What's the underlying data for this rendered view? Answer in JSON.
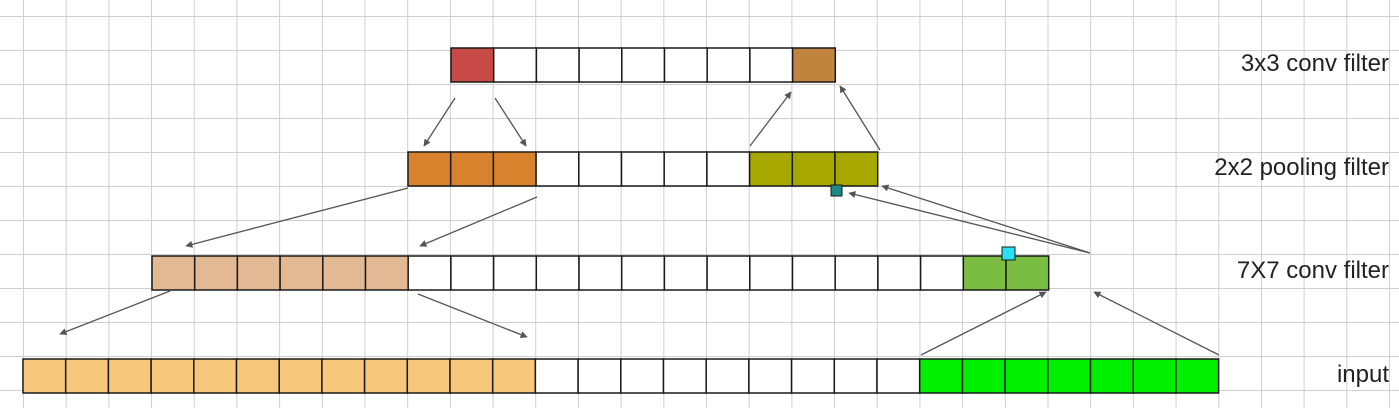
{
  "labels": {
    "conv3": "3x3 conv filter",
    "pool": "2x2 pooling filter",
    "conv7": "7X7 conv filter",
    "input": "input"
  },
  "colors": {
    "grid": "#cfcfcf",
    "cell_border": "#1a1a1a",
    "arrow": "#555555",
    "red": "#c84b47",
    "brown": "#c0843f",
    "orange": "#d8822e",
    "olive": "#a6a800",
    "tan": "#e2b993",
    "light_green": "#7bbd42",
    "peach": "#f7c77b",
    "green": "#00f000",
    "white": "#ffffff",
    "handle_cyan": "#29e3f2",
    "handle_teal": "#1e8a86"
  },
  "rows": [
    {
      "id": "conv3",
      "cells": [
        "red",
        "white",
        "white",
        "white",
        "white",
        "white",
        "white",
        "white",
        "brown"
      ]
    },
    {
      "id": "pool",
      "cells": [
        "orange",
        "orange",
        "orange",
        "white",
        "white",
        "white",
        "white",
        "white",
        "olive",
        "olive",
        "olive"
      ]
    },
    {
      "id": "conv7",
      "cells": [
        "tan",
        "tan",
        "tan",
        "tan",
        "tan",
        "tan",
        "white",
        "white",
        "white",
        "white",
        "white",
        "white",
        "white",
        "white",
        "white",
        "white",
        "white",
        "white",
        "white",
        "light_green",
        "light_green"
      ]
    },
    {
      "id": "input",
      "cells": [
        "peach",
        "peach",
        "peach",
        "peach",
        "peach",
        "peach",
        "peach",
        "peach",
        "peach",
        "peach",
        "peach",
        "peach",
        "white",
        "white",
        "white",
        "white",
        "white",
        "white",
        "white",
        "white",
        "white",
        "green",
        "green",
        "green",
        "green",
        "green",
        "green",
        "green"
      ]
    }
  ]
}
